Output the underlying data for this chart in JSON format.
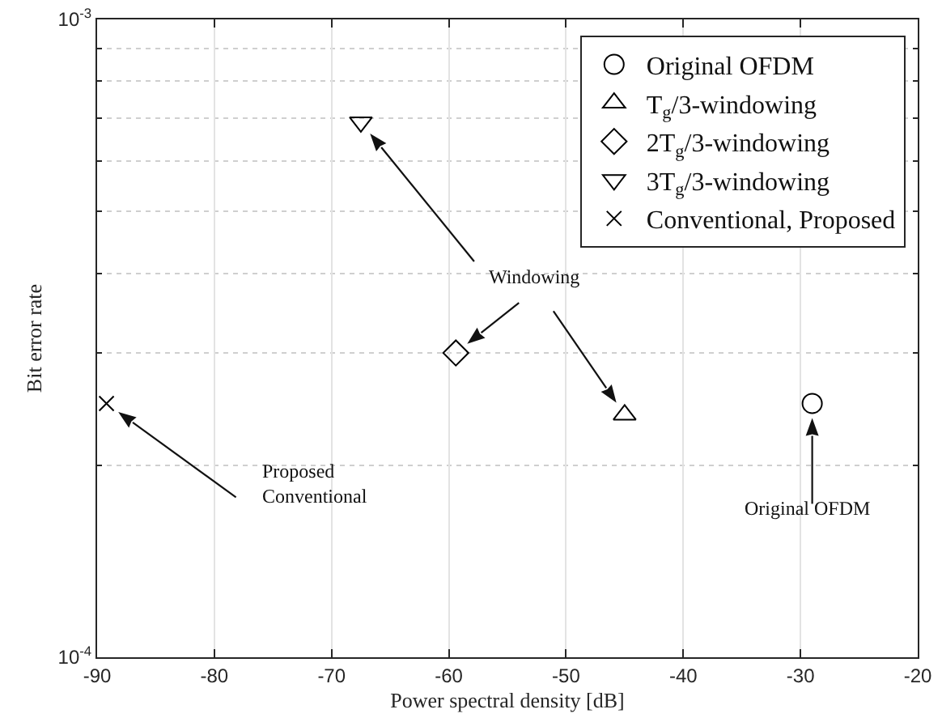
{
  "chart_data": {
    "type": "scatter",
    "xlabel": "Power spectral density [dB]",
    "ylabel": "Bit error rate",
    "series": [
      {
        "name": "Original OFDM",
        "color": "#000000",
        "marker": "circle",
        "x": [
          -29
        ],
        "values": [
          0.00025
        ]
      },
      {
        "name": "T$_{g}$/3-windowing",
        "color": "#000000",
        "marker": "triangle",
        "x": [
          -45
        ],
        "values": [
          0.00024
        ]
      },
      {
        "name": "2T$_{g}$/3-windowing",
        "color": "#000000",
        "marker": "diamond",
        "x": [
          -59.4
        ],
        "values": [
          0.0003
        ]
      },
      {
        "name": "3T$_{g}$/3-windowing",
        "color": "#000000",
        "marker": "triangle-down",
        "x": [
          -67.5
        ],
        "values": [
          0.00069
        ]
      },
      {
        "name": "Conventional, Proposed",
        "color": "#000000",
        "marker": "cross",
        "x": [
          -89.2
        ],
        "values": [
          0.00025
        ]
      }
    ],
    "annotations": [
      "Windowing",
      "Proposed\nConventional",
      "Original OFDM"
    ],
    "log": "y",
    "xlim": [
      -90,
      -20
    ],
    "ylim": [
      0.0001,
      0.001
    ],
    "xticks": [
      -90,
      -80,
      -70,
      -60,
      -50,
      -40,
      -30,
      -20
    ],
    "yticks": [
      {
        "value": 0.0001,
        "label": "10$^{-4}$"
      },
      {
        "value": 0.0002,
        "label": null
      },
      {
        "value": 0.0003,
        "label": null
      },
      {
        "value": 0.0004,
        "label": null
      },
      {
        "value": 0.0005,
        "label": null
      },
      {
        "value": 0.0006,
        "label": null
      },
      {
        "value": 0.0007,
        "label": null
      },
      {
        "value": 0.0008,
        "label": null
      },
      {
        "value": 0.0009,
        "label": null
      },
      {
        "value": 0.001,
        "label": "10$^{-3}$"
      }
    ],
    "grid": true,
    "legend": "top right"
  }
}
